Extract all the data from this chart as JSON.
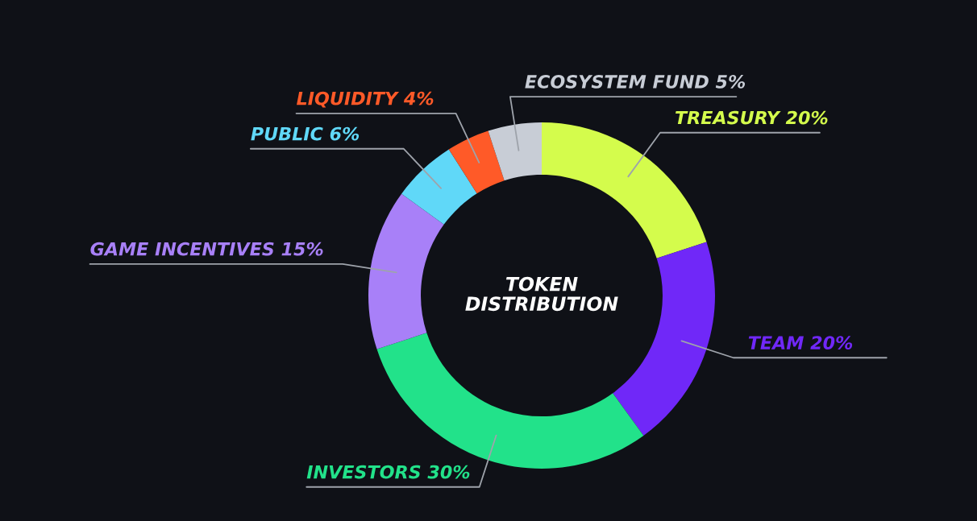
{
  "chart_data": {
    "type": "donut",
    "title": "TOKEN\nDISTRIBUTION",
    "categories": [
      "TREASURY",
      "TEAM",
      "INVESTORS",
      "GAME INCENTIVES",
      "PUBLIC",
      "LIQUIDITY",
      "ECOSYSTEM FUND"
    ],
    "values": [
      20,
      20,
      30,
      15,
      6,
      4,
      5
    ],
    "colors": [
      "#d4fc4c",
      "#7028f8",
      "#22e28a",
      "#a880f8",
      "#60d8f8",
      "#ff5a28",
      "#c8cdd6"
    ],
    "value_labels": [
      "20%",
      "20%",
      "30%",
      "15%",
      "6%",
      "4%",
      "5%"
    ]
  }
}
